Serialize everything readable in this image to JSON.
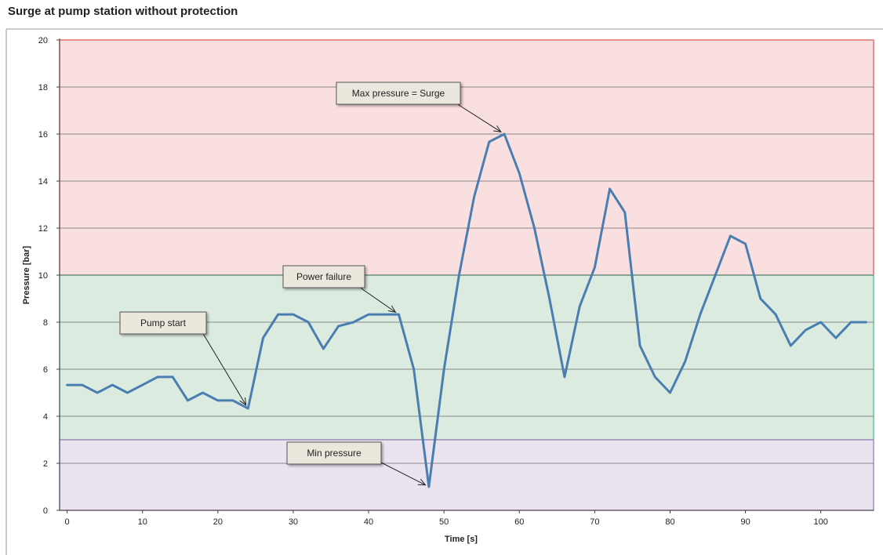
{
  "chart_data": {
    "type": "line",
    "title": "Surge at pump station without protection",
    "xlabel": "Time [s]",
    "ylabel": "Pressure [bar]",
    "xlim": [
      -1,
      107
    ],
    "ylim": [
      0,
      20
    ],
    "x_ticks": [
      0,
      10,
      20,
      30,
      40,
      50,
      60,
      70,
      80,
      90,
      100
    ],
    "y_ticks": [
      0,
      2,
      4,
      6,
      8,
      10,
      12,
      14,
      16,
      18,
      20
    ],
    "grid": "horizontal",
    "bands": [
      {
        "from": 10,
        "to": 20,
        "fill": "#fadfe0",
        "edge": "#e07070"
      },
      {
        "from": 3,
        "to": 10,
        "fill": "#dcebe0",
        "edge": "#70c0a0"
      },
      {
        "from": 0,
        "to": 3,
        "fill": "#ebe4f0",
        "edge": "#a090c0"
      }
    ],
    "line_color": "#4a7eb0",
    "series": [
      {
        "x": [
          0,
          2,
          4,
          6,
          8,
          10,
          12,
          14,
          16,
          18,
          20,
          22,
          24,
          26,
          28,
          30,
          32,
          34,
          36,
          38,
          40,
          42,
          44,
          46,
          48,
          50,
          52,
          54,
          56,
          58,
          60,
          62,
          64,
          66,
          68,
          70,
          72,
          74,
          76,
          78,
          80,
          82,
          84,
          86,
          88,
          90,
          92,
          94,
          96,
          98,
          100,
          102,
          104,
          106
        ],
        "values": [
          5.33,
          5.33,
          5.0,
          5.33,
          5.0,
          5.33,
          5.67,
          5.67,
          4.67,
          5.0,
          4.67,
          4.67,
          4.33,
          7.33,
          8.33,
          8.33,
          8.0,
          6.87,
          7.83,
          8.0,
          8.33,
          8.33,
          8.33,
          6.0,
          1.0,
          6.0,
          10.0,
          13.33,
          15.67,
          16.0,
          14.33,
          12.0,
          9.0,
          5.67,
          8.67,
          10.33,
          13.67,
          12.67,
          7.0,
          5.67,
          5.0,
          6.33,
          8.33,
          10.0,
          11.67,
          11.33,
          9.0,
          8.33,
          7.0,
          7.67,
          8.0,
          7.33,
          8.0,
          8.0
        ]
      }
    ],
    "annotations": [
      {
        "text": "Max pressure = Surge",
        "x": 58,
        "y": 16.0
      },
      {
        "text": "Power failure",
        "x": 44,
        "y": 8.33
      },
      {
        "text": "Pump start",
        "x": 24,
        "y": 4.33
      },
      {
        "text": "Min pressure",
        "x": 48,
        "y": 1.0
      }
    ]
  }
}
